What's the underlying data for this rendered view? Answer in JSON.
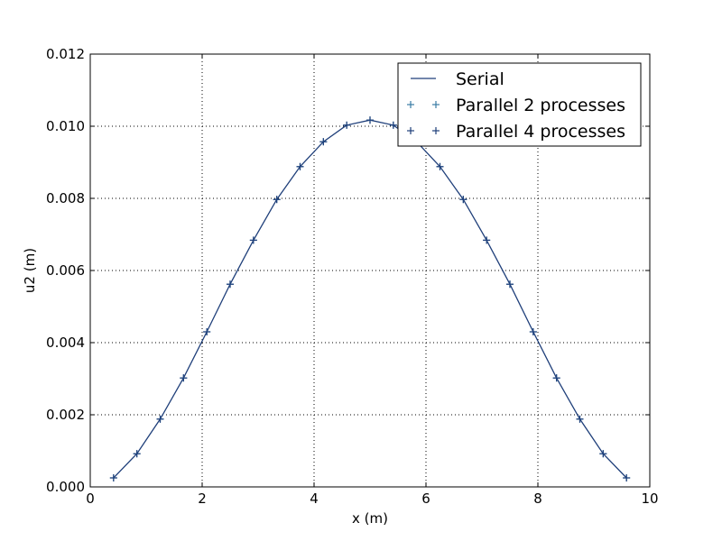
{
  "chart_data": {
    "type": "line",
    "xlabel": "x (m)",
    "ylabel": "u2 (m)",
    "xlim": [
      0,
      10
    ],
    "ylim": [
      0,
      0.012
    ],
    "x_ticks": [
      "0",
      "2",
      "4",
      "6",
      "8",
      "10"
    ],
    "y_ticks": [
      "0.000",
      "0.002",
      "0.004",
      "0.006",
      "0.008",
      "0.010",
      "0.012"
    ],
    "grid": true,
    "legend_position": "top-right",
    "series": [
      {
        "name": "Serial",
        "style": "line",
        "color": "#1f3f7a",
        "x": [
          0.4167,
          0.8333,
          1.25,
          1.6667,
          2.0833,
          2.5,
          2.9167,
          3.3333,
          3.75,
          4.1667,
          4.5833,
          5.0,
          5.4167,
          5.8333,
          6.25,
          6.6667,
          7.0833,
          7.5,
          7.9167,
          8.3333,
          8.75,
          9.1667,
          9.5833
        ],
        "y": [
          0.00025,
          0.00092,
          0.00188,
          0.00302,
          0.0043,
          0.00562,
          0.00684,
          0.00797,
          0.00888,
          0.00957,
          0.01003,
          0.01017,
          0.01003,
          0.00957,
          0.00888,
          0.00797,
          0.00684,
          0.00562,
          0.0043,
          0.00302,
          0.00188,
          0.00092,
          0.00025
        ]
      },
      {
        "name": "Parallel 2 processes",
        "style": "marker",
        "color": "#3a7ca5",
        "x": [
          0.4167,
          0.8333,
          1.25,
          1.6667,
          2.0833,
          2.5,
          2.9167,
          3.3333,
          3.75,
          4.1667,
          4.5833,
          5.0,
          5.4167,
          5.8333,
          6.25,
          6.6667,
          7.0833,
          7.5,
          7.9167,
          8.3333,
          8.75,
          9.1667,
          9.5833
        ],
        "y": [
          0.00025,
          0.00092,
          0.00188,
          0.00302,
          0.0043,
          0.00562,
          0.00684,
          0.00797,
          0.00888,
          0.00957,
          0.01003,
          0.01017,
          0.01003,
          0.00957,
          0.00888,
          0.00797,
          0.00684,
          0.00562,
          0.0043,
          0.00302,
          0.00188,
          0.00092,
          0.00025
        ]
      },
      {
        "name": "Parallel 4 processes",
        "style": "marker",
        "color": "#1f3f7a",
        "x": [
          0.4167,
          0.8333,
          1.25,
          1.6667,
          2.0833,
          2.5,
          2.9167,
          3.3333,
          3.75,
          4.1667,
          4.5833,
          5.0,
          5.4167,
          5.8333,
          6.25,
          6.6667,
          7.0833,
          7.5,
          7.9167,
          8.3333,
          8.75,
          9.1667,
          9.5833
        ],
        "y": [
          0.00025,
          0.00092,
          0.00188,
          0.00302,
          0.0043,
          0.00562,
          0.00684,
          0.00797,
          0.00888,
          0.00957,
          0.01003,
          0.01017,
          0.01003,
          0.00957,
          0.00888,
          0.00797,
          0.00684,
          0.00562,
          0.0043,
          0.00302,
          0.00188,
          0.00092,
          0.00025
        ]
      }
    ]
  }
}
